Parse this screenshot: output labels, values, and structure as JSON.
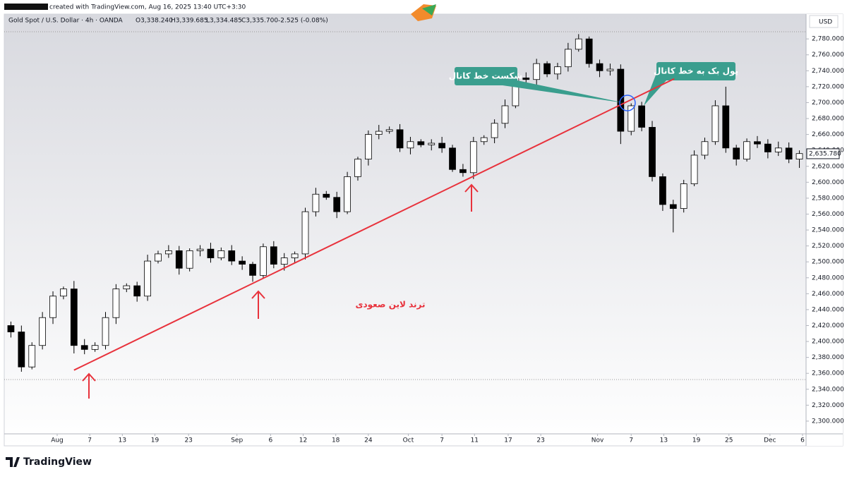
{
  "chart_data": {
    "type": "candlestick",
    "watermark": "created with TradingView.com, Aug 16, 2025 13:40 UTC+3:30",
    "symbol": "Gold Spot / U.S. Dollar · 4h · OANDA",
    "ohlc": [
      "O3,338.240",
      "H3,339.685",
      "L3,334.485",
      "C3,335.700"
    ],
    "change": "-2.525 (-0.08%)",
    "currency": "USD",
    "brand": "TradingView",
    "up_color": "#ffffff",
    "down_color": "#000000",
    "wick_color": "#000000",
    "open": [
      2420,
      2412,
      2368,
      2395,
      2430,
      2457,
      2466,
      2395,
      2390,
      2395,
      2430,
      2466,
      2470,
      2457,
      2501,
      2510,
      2514,
      2492,
      2514,
      2516,
      2505,
      2514,
      2501,
      2497,
      2483,
      2519,
      2497,
      2505,
      2510,
      2563,
      2585,
      2581,
      2563,
      2607,
      2629,
      2660,
      2664,
      2666,
      2643,
      2651,
      2647,
      2649,
      2643,
      2616,
      2612,
      2651,
      2656,
      2674,
      2696,
      2731,
      2729,
      2749,
      2736,
      2745,
      2767,
      2780,
      2749,
      2740,
      2742,
      2664,
      2696,
      2669,
      2607,
      2572,
      2567,
      2598,
      2634,
      2651,
      2696,
      2643,
      2629,
      2651,
      2648,
      2638,
      2643,
      2629
    ],
    "high": [
      2425,
      2420,
      2399,
      2437,
      2463,
      2469,
      2476,
      2403,
      2399,
      2437,
      2472,
      2473,
      2475,
      2509,
      2514,
      2521,
      2520,
      2517,
      2521,
      2524,
      2518,
      2521,
      2507,
      2500,
      2523,
      2526,
      2511,
      2513,
      2568,
      2593,
      2589,
      2588,
      2613,
      2632,
      2665,
      2672,
      2670,
      2673,
      2657,
      2654,
      2654,
      2657,
      2647,
      2623,
      2657,
      2659,
      2679,
      2704,
      2735,
      2738,
      2755,
      2752,
      2750,
      2775,
      2786,
      2783,
      2754,
      2749,
      2748,
      2699,
      2701,
      2677,
      2611,
      2578,
      2603,
      2640,
      2656,
      2703,
      2720,
      2647,
      2655,
      2658,
      2654,
      2651,
      2650,
      2640
    ],
    "low": [
      2405,
      2362,
      2365,
      2390,
      2422,
      2453,
      2385,
      2384,
      2387,
      2390,
      2422,
      2462,
      2450,
      2451,
      2498,
      2505,
      2484,
      2488,
      2507,
      2499,
      2502,
      2496,
      2490,
      2475,
      2480,
      2492,
      2489,
      2499,
      2503,
      2557,
      2578,
      2555,
      2560,
      2602,
      2621,
      2654,
      2661,
      2638,
      2635,
      2644,
      2640,
      2637,
      2613,
      2607,
      2604,
      2647,
      2649,
      2668,
      2693,
      2724,
      2721,
      2732,
      2729,
      2739,
      2764,
      2744,
      2732,
      2734,
      2648,
      2659,
      2664,
      2601,
      2564,
      2537,
      2562,
      2595,
      2629,
      2647,
      2637,
      2621,
      2626,
      2643,
      2630,
      2633,
      2624,
      2618
    ],
    "close": [
      2412,
      2368,
      2395,
      2430,
      2457,
      2466,
      2395,
      2390,
      2395,
      2430,
      2466,
      2470,
      2457,
      2501,
      2510,
      2514,
      2492,
      2514,
      2516,
      2505,
      2514,
      2501,
      2497,
      2483,
      2519,
      2497,
      2505,
      2510,
      2563,
      2585,
      2581,
      2563,
      2607,
      2629,
      2660,
      2664,
      2666,
      2643,
      2651,
      2647,
      2649,
      2643,
      2616,
      2612,
      2651,
      2656,
      2674,
      2696,
      2731,
      2729,
      2749,
      2736,
      2745,
      2767,
      2780,
      2749,
      2740,
      2742,
      2664,
      2696,
      2669,
      2607,
      2572,
      2567,
      2598,
      2634,
      2651,
      2696,
      2643,
      2629,
      2651,
      2648,
      2638,
      2643,
      2629,
      2636
    ],
    "ylim": [
      2284,
      2789
    ],
    "yticks": [
      {
        "value": 2300,
        "label": "2,300.000"
      },
      {
        "value": 2320,
        "label": "2,320.000"
      },
      {
        "value": 2340,
        "label": "2,340.000"
      },
      {
        "value": 2360,
        "label": "2,360.000"
      },
      {
        "value": 2380,
        "label": "2,380.000"
      },
      {
        "value": 2400,
        "label": "2,400.000"
      },
      {
        "value": 2420,
        "label": "2,420.000"
      },
      {
        "value": 2440,
        "label": "2,440.000"
      },
      {
        "value": 2460,
        "label": "2,460.000"
      },
      {
        "value": 2480,
        "label": "2,480.000"
      },
      {
        "value": 2500,
        "label": "2,500.000"
      },
      {
        "value": 2520,
        "label": "2,520.000"
      },
      {
        "value": 2540,
        "label": "2,540.000"
      },
      {
        "value": 2560,
        "label": "2,560.000"
      },
      {
        "value": 2580,
        "label": "2,580.000"
      },
      {
        "value": 2600,
        "label": "2,600.000"
      },
      {
        "value": 2620,
        "label": "2,620.000"
      },
      {
        "value": 2640,
        "label": "2,640.000"
      },
      {
        "value": 2660,
        "label": "2,660.000"
      },
      {
        "value": 2680,
        "label": "2,680.000"
      },
      {
        "value": 2700,
        "label": "2,700.000"
      },
      {
        "value": 2720,
        "label": "2,720.000"
      },
      {
        "value": 2740,
        "label": "2,740.000"
      },
      {
        "value": 2760,
        "label": "2,760.000"
      },
      {
        "value": 2780,
        "label": "2,780.000"
      }
    ],
    "xlim": [
      -0.5,
      75.5
    ],
    "xticks": [
      {
        "value": 4.4,
        "label": "Aug"
      },
      {
        "value": 7.5,
        "label": "7"
      },
      {
        "value": 10.6,
        "label": "13"
      },
      {
        "value": 13.7,
        "label": "19"
      },
      {
        "value": 16.9,
        "label": "23"
      },
      {
        "value": 21.5,
        "label": "Sep"
      },
      {
        "value": 24.7,
        "label": "6"
      },
      {
        "value": 27.8,
        "label": "12"
      },
      {
        "value": 30.9,
        "label": "18"
      },
      {
        "value": 34.0,
        "label": "24"
      },
      {
        "value": 37.8,
        "label": "Oct"
      },
      {
        "value": 41.0,
        "label": "7"
      },
      {
        "value": 44.1,
        "label": "11"
      },
      {
        "value": 47.3,
        "label": "17"
      },
      {
        "value": 50.4,
        "label": "23"
      },
      {
        "value": 55.8,
        "label": "Nov"
      },
      {
        "value": 59.0,
        "label": "7"
      },
      {
        "value": 62.1,
        "label": "13"
      },
      {
        "value": 65.2,
        "label": "19"
      },
      {
        "value": 68.3,
        "label": "25"
      },
      {
        "value": 72.2,
        "label": "Dec"
      },
      {
        "value": 75.3,
        "label": "6"
      }
    ],
    "last_price": {
      "value": 2635.78,
      "label": "2,635.780"
    },
    "trendline": {
      "x": [
        6.0,
        63.1
      ],
      "y": [
        2364,
        2730
      ],
      "color": "#e8323c"
    },
    "annotations": {
      "trend": "ترند لاین صعودی",
      "break": "شکست خط کانال",
      "pullback": "پول بک به خط کانال"
    }
  }
}
